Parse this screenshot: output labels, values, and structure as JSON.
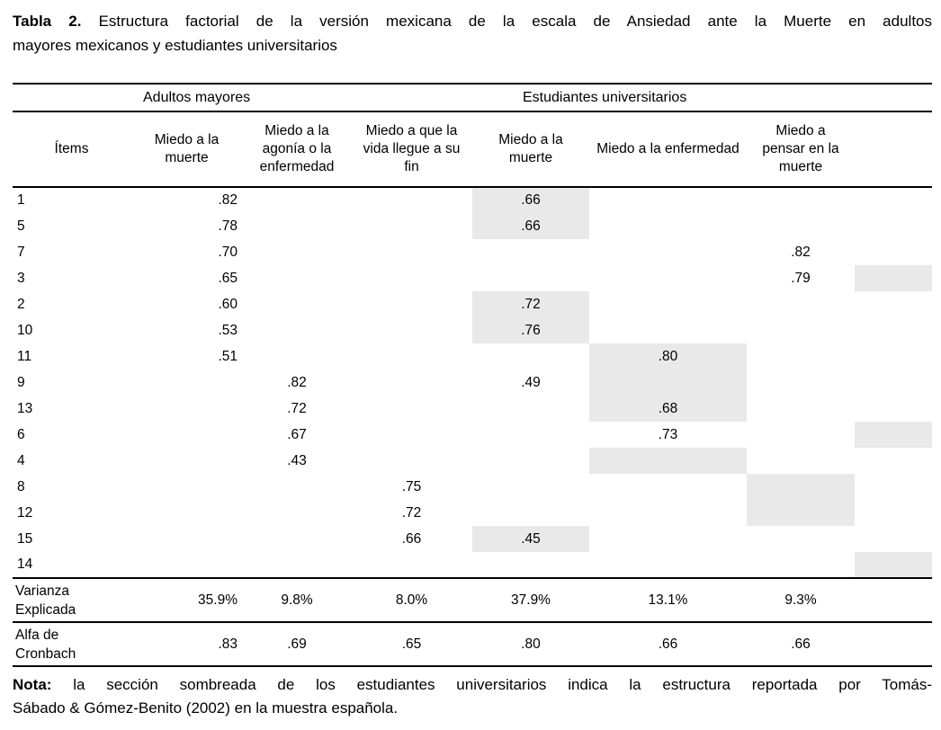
{
  "title": {
    "bold": "Tabla 2.",
    "line1_rest": "Estructura factorial de la versión mexicana de la escala de Ansiedad ante la Muerte en adultos",
    "line2": "mayores mexicanos y estudiantes universitarios"
  },
  "table": {
    "group_headers": [
      "Adultos mayores",
      "Estudiantes universitarios"
    ],
    "column_headers": [
      "Ítems",
      "Miedo a la muerte",
      "Miedo a la agonía o la enfermedad",
      "Miedo a que la vida llegue a su fin",
      "Miedo a la muerte",
      "Miedo a la enfermedad",
      "Miedo a pensar en la muerte"
    ],
    "shading_color": "#e9e9e9",
    "rows": [
      {
        "item": "1",
        "values": [
          ".82",
          "",
          "",
          ".66",
          "",
          "",
          ""
        ],
        "shaded": [
          3
        ]
      },
      {
        "item": "5",
        "values": [
          ".78",
          "",
          "",
          ".66",
          "",
          "",
          ""
        ],
        "shaded": [
          3
        ]
      },
      {
        "item": "7",
        "values": [
          ".70",
          "",
          "",
          "",
          "",
          ".82",
          ""
        ],
        "shaded": []
      },
      {
        "item": "3",
        "values": [
          ".65",
          "",
          "",
          "",
          "",
          ".79",
          ""
        ],
        "shaded": [
          6
        ]
      },
      {
        "item": "2",
        "values": [
          ".60",
          "",
          "",
          ".72",
          "",
          "",
          ""
        ],
        "shaded": [
          3
        ]
      },
      {
        "item": "10",
        "values": [
          ".53",
          "",
          "",
          ".76",
          "",
          "",
          ""
        ],
        "shaded": [
          3
        ]
      },
      {
        "item": "11",
        "values": [
          ".51",
          "",
          "",
          "",
          ".80",
          "",
          ""
        ],
        "shaded": [
          4
        ]
      },
      {
        "item": "9",
        "values": [
          "",
          ".82",
          "",
          ".49",
          "",
          "",
          ""
        ],
        "shaded": [
          4
        ]
      },
      {
        "item": "13",
        "values": [
          "",
          ".72",
          "",
          "",
          ".68",
          "",
          ""
        ],
        "shaded": [
          4
        ]
      },
      {
        "item": "6",
        "values": [
          "",
          ".67",
          "",
          "",
          ".73",
          "",
          ""
        ],
        "shaded": [
          6
        ]
      },
      {
        "item": "4",
        "values": [
          "",
          ".43",
          "",
          "",
          "",
          "",
          ""
        ],
        "shaded": [
          4
        ]
      },
      {
        "item": "8",
        "values": [
          "",
          "",
          ".75",
          "",
          "",
          "",
          ""
        ],
        "shaded": [
          5
        ]
      },
      {
        "item": "12",
        "values": [
          "",
          "",
          ".72",
          "",
          "",
          "",
          ""
        ],
        "shaded": [
          5
        ]
      },
      {
        "item": "15",
        "values": [
          "",
          "",
          ".66",
          ".45",
          "",
          "",
          ""
        ],
        "shaded": [
          3
        ]
      },
      {
        "item": "14",
        "values": [
          "",
          "",
          "",
          "",
          "",
          "",
          ""
        ],
        "shaded": [
          6
        ]
      }
    ],
    "summary_rows": [
      {
        "label": "Varianza\nExplicada",
        "values": [
          "35.9%",
          "9.8%",
          "8.0%",
          "37.9%",
          "13.1%",
          "9.3%",
          ""
        ]
      },
      {
        "label": "Alfa de\nCronbach",
        "values": [
          ".83",
          ".69",
          ".65",
          ".80",
          ".66",
          ".66",
          ""
        ]
      }
    ]
  },
  "note": {
    "bold": "Nota:",
    "line1_rest": "la sección sombreada de los estudiantes universitarios indica la estructura reportada por Tomás-",
    "line2": "Sábado & Gómez-Benito (2002) en la muestra española."
  }
}
